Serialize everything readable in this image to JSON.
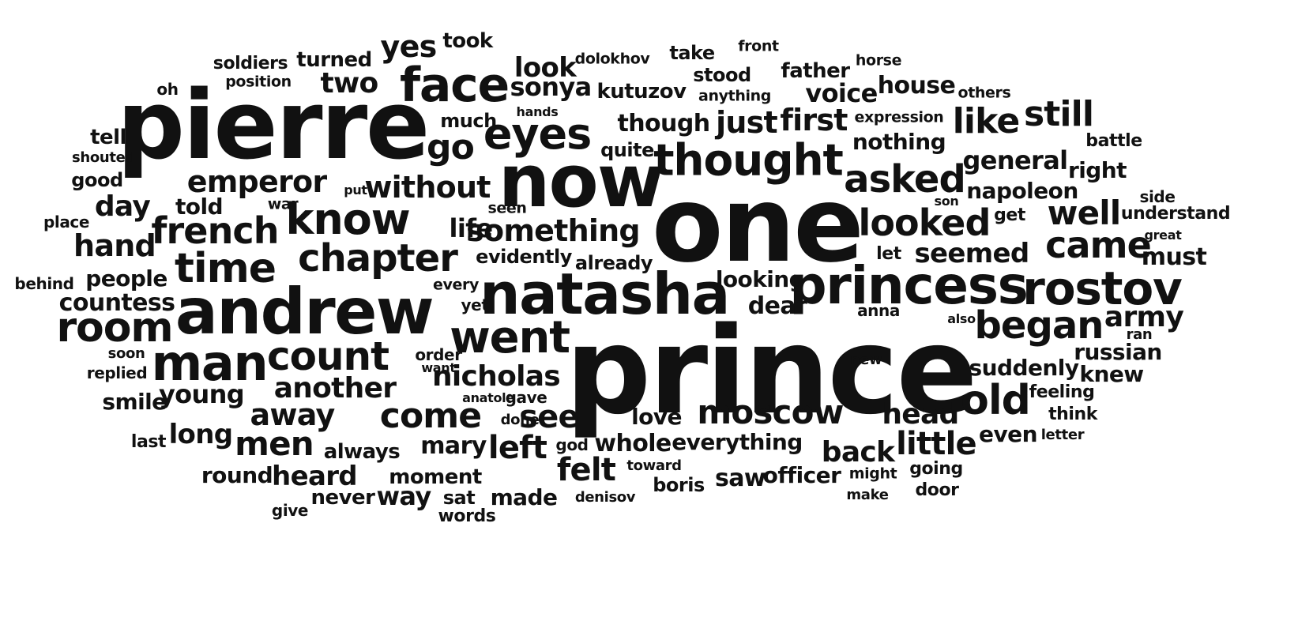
{
  "words": [
    "prince",
    "one",
    "pierre",
    "now",
    "natasha",
    "andrew",
    "princess",
    "rostov",
    "face",
    "thought",
    "went",
    "man",
    "room",
    "eyes",
    "time",
    "know",
    "chapter",
    "count",
    "asked",
    "looked",
    "began",
    "old",
    "came",
    "moscow",
    "see",
    "go",
    "come",
    "like",
    "still",
    "well",
    "french",
    "emperor",
    "something",
    "without",
    "just",
    "first",
    "little",
    "felt",
    "left",
    "away",
    "men",
    "another",
    "nicholas",
    "two",
    "yes",
    "look",
    "sonya",
    "took",
    "turned",
    "soldiers",
    "position",
    "oh",
    "tell",
    "shouted",
    "good",
    "day",
    "hand",
    "told",
    "place",
    "behind",
    "people",
    "countess",
    "young",
    "smile",
    "replied",
    "soon",
    "last",
    "long",
    "round",
    "heard",
    "always",
    "never",
    "give",
    "way",
    "moment",
    "sat",
    "made",
    "words",
    "mary",
    "whole",
    "love",
    "everything",
    "saw",
    "officer",
    "boris",
    "denisov",
    "toward",
    "god",
    "head",
    "back",
    "even",
    "letter",
    "think",
    "feeling",
    "knew",
    "suddenly",
    "russian",
    "army",
    "ran",
    "also",
    "new",
    "anna",
    "dear",
    "looking",
    "seemed",
    "let",
    "must",
    "great",
    "understand",
    "side",
    "get",
    "son",
    "napoleon",
    "right",
    "general",
    "battle",
    "expression",
    "nothing",
    "voice",
    "house",
    "others",
    "father",
    "horse",
    "front",
    "stood",
    "take",
    "dolokhov",
    "kutuzov",
    "anything",
    "hands",
    "much",
    "quite",
    "though",
    "evidently",
    "already",
    "life",
    "seen",
    "war",
    "put",
    "every",
    "yet",
    "order",
    "want",
    "anatole",
    "gave",
    "done",
    "going",
    "door",
    "make",
    "might"
  ]
}
